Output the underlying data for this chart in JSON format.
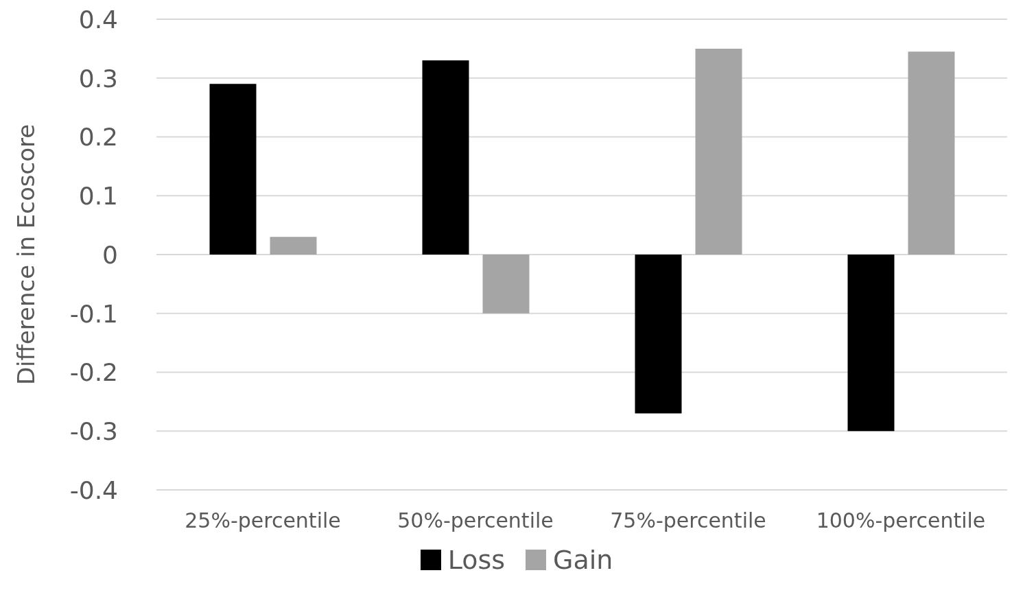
{
  "chart_data": {
    "type": "bar",
    "ylabel": "Difference in Ecoscore",
    "categories": [
      "25%-percentile",
      "50%-percentile",
      "75%-percentile",
      "100%-percentile"
    ],
    "series": [
      {
        "name": "Loss",
        "color": "#000000",
        "values": [
          0.29,
          0.33,
          -0.27,
          -0.3
        ]
      },
      {
        "name": "Gain",
        "color": "#a5a5a5",
        "values": [
          0.03,
          -0.1,
          0.35,
          0.345
        ]
      }
    ],
    "ylim": [
      -0.4,
      0.4
    ],
    "yticks": [
      -0.4,
      -0.3,
      -0.2,
      -0.1,
      0,
      0.1,
      0.2,
      0.3,
      0.4
    ],
    "grid": "y",
    "legend": "bottom"
  }
}
